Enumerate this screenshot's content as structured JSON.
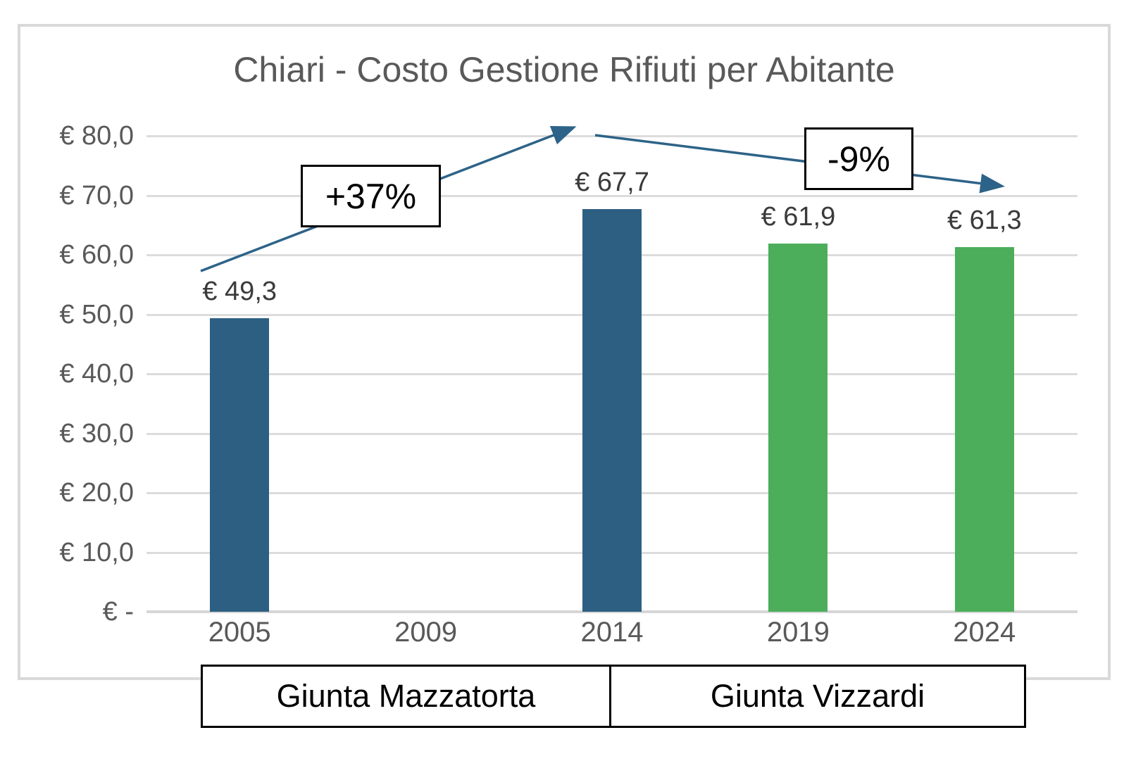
{
  "chart_data": {
    "type": "bar",
    "title": "Chiari - Costo Gestione Rifiuti per Abitante",
    "categories": [
      "2005",
      "2009",
      "2014",
      "2019",
      "2024"
    ],
    "values": [
      49.3,
      null,
      67.7,
      61.9,
      61.3
    ],
    "bar_labels": [
      "€ 49,3",
      "",
      "€ 67,7",
      "€ 61,9",
      "€ 61,3"
    ],
    "bar_colors": [
      "#2d5f82",
      null,
      "#2d5f82",
      "#4cad5b",
      "#4cad5b"
    ],
    "xlabel": "",
    "ylabel": "",
    "ylim": [
      0,
      80
    ],
    "yticks": [
      "€ 80,0",
      "€ 70,0",
      "€ 60,0",
      "€ 50,0",
      "€ 40,0",
      "€ 30,0",
      "€ 20,0",
      "€ 10,0",
      "€ -"
    ],
    "grid": true,
    "legend": "none",
    "annotations": [
      {
        "text": "+37%",
        "arrow": "up-from-2005-to-2014"
      },
      {
        "text": "-9%",
        "arrow": "down-from-2014-to-2024"
      }
    ],
    "group_labels": [
      {
        "text": "Giunta Mazzatorta",
        "covers": [
          "2005",
          "2009",
          "2014"
        ]
      },
      {
        "text": "Giunta Vizzardi",
        "covers": [
          "2019",
          "2024"
        ]
      }
    ]
  },
  "colors": {
    "bar_blue": "#2d5f82",
    "bar_green": "#4cad5b",
    "arrow": "#2d6388",
    "gridline": "#dcdcdc",
    "axis_text": "#595959",
    "data_label_text": "#3a3a3a",
    "title_text": "#595959",
    "frame_border": "#d9d9d9",
    "annotation_border": "#000000",
    "annotation_bg": "#ffffff"
  }
}
